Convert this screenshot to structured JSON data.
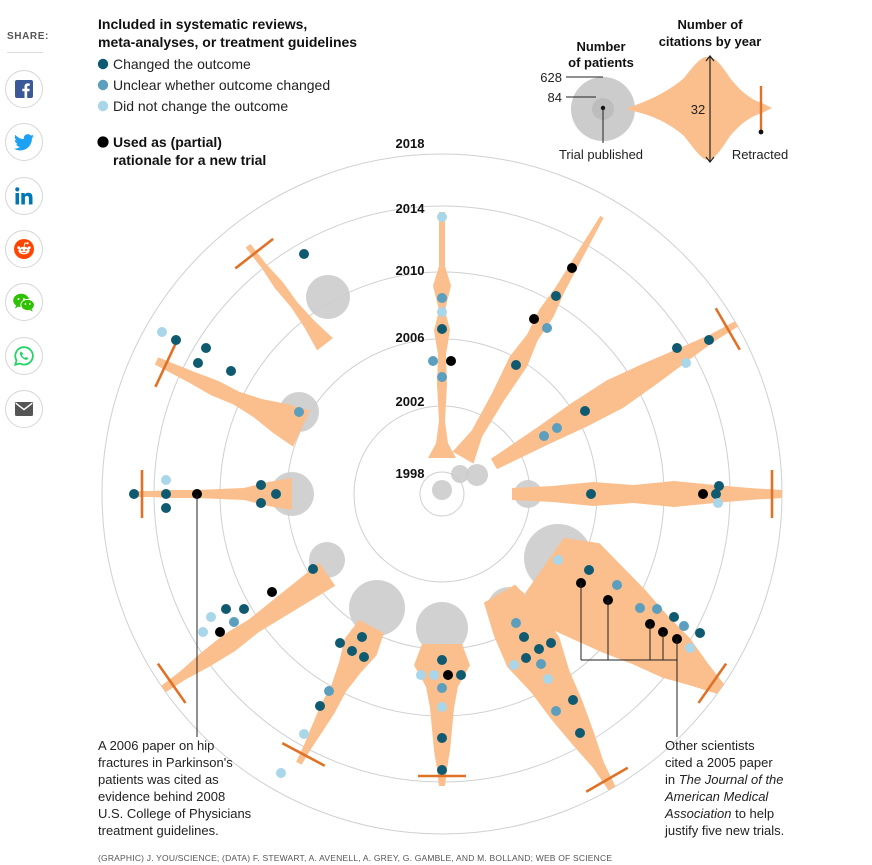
{
  "share": {
    "label": "SHARE:",
    "buttons": [
      {
        "id": "facebook",
        "icon": "facebook-icon",
        "color": "#3b5998"
      },
      {
        "id": "twitter",
        "icon": "twitter-icon",
        "color": "#1da1f2"
      },
      {
        "id": "linkedin",
        "icon": "linkedin-icon",
        "color": "#0077b5"
      },
      {
        "id": "reddit",
        "icon": "reddit-icon",
        "color": "#ff4500"
      },
      {
        "id": "wechat",
        "icon": "wechat-icon",
        "color": "#2dc100"
      },
      {
        "id": "whatsapp",
        "icon": "whatsapp-icon",
        "color": "#25d366"
      },
      {
        "id": "email",
        "icon": "email-icon",
        "color": "#555555"
      }
    ]
  },
  "legend": {
    "title_line1": "Included in systematic reviews,",
    "title_line2": "meta-analyses, or treatment guidelines",
    "items": [
      {
        "label": "Changed the outcome",
        "color": "#0f5a70"
      },
      {
        "label": "Unclear whether outcome changed",
        "color": "#5b9ebd"
      },
      {
        "label": "Did not change the outcome",
        "color": "#a9d6e9"
      }
    ],
    "rationale_line1": "Used as (partial)",
    "rationale_line2": "rationale for a new trial",
    "rationale_color": "#000000"
  },
  "key": {
    "patients_line1": "Number",
    "patients_line2": "of patients",
    "citations_line1": "Number of",
    "citations_line2": "citations by year",
    "n_large": "628",
    "n_small": "84",
    "citation_count": "32",
    "trial_published": "Trial published",
    "retracted": "Retracted"
  },
  "colors": {
    "violin": "#fbbf8d",
    "retraction": "#e07228",
    "bubble": "#cccccc",
    "ring": "#d0d0d0",
    "changed": "#0f5a70",
    "unclear": "#5b9ebd",
    "nochange": "#a9d6e9",
    "rationale": "#000000"
  },
  "radial": {
    "years": [
      "1998",
      "2002",
      "2006",
      "2010",
      "2014",
      "2018"
    ]
  },
  "annotations": {
    "left": [
      "A 2006 paper on hip",
      "fractures in Parkinson's",
      "patients was cited as",
      "evidence behind 2008",
      "U.S. College of Physicians",
      "treatment guidelines."
    ],
    "right_plain1": "Other scientists",
    "right_plain2": "cited a 2005 paper",
    "right_prefix3": "in ",
    "right_italic3": "The Journal of the",
    "right_italic4": "American Medical",
    "right_italic5": "Association",
    "right_suffix5": " to help",
    "right_plain6": "justify five new trials."
  },
  "credit": "(GRAPHIC) J. YOU/SCIENCE; (DATA) F. STEWART, A. AVENELL, A. GREY, G. GAMBLE, AND M. BOLLAND; WEB OF SCIENCE"
}
